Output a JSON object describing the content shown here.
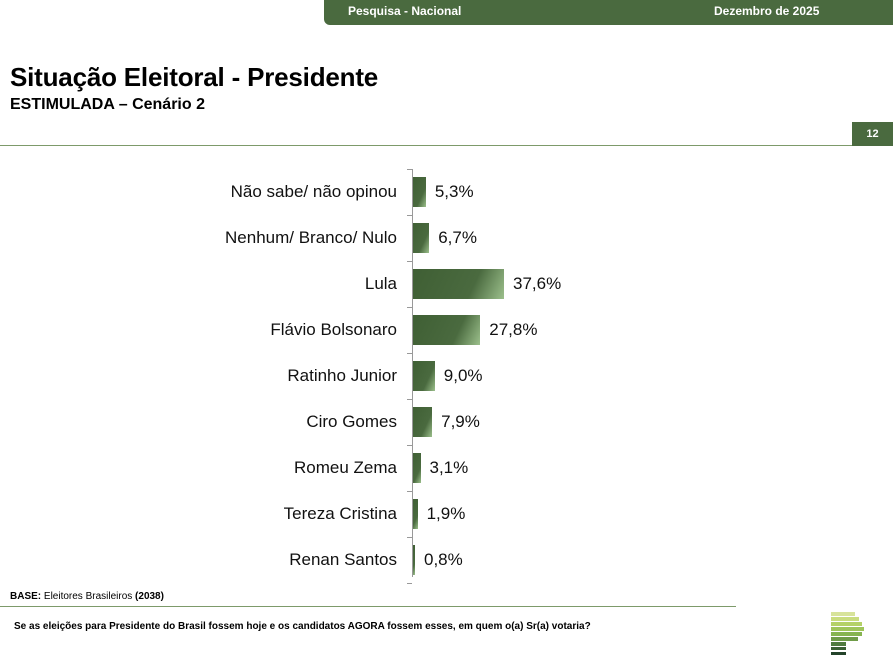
{
  "header": {
    "survey_label": "Pesquisa - Nacional",
    "date_label": "Dezembro de 2025",
    "brand_color": "#4a6a3f"
  },
  "page": {
    "title": "Situação Eleitoral - Presidente",
    "subtitle": "ESTIMULADA – Cenário 2",
    "page_number": "12"
  },
  "footer": {
    "base_label": "BASE:",
    "base_text": " Eleitores Brasileiros ",
    "base_count": "(2038)",
    "question": "Se as eleições para Presidente do Brasil fossem hoje e os candidatos AGORA fossem esses, em quem o(a) Sr(a) votaria?"
  },
  "chart_data": {
    "type": "bar",
    "orientation": "horizontal",
    "title": "Situação Eleitoral - Presidente",
    "subtitle": "ESTIMULADA – Cenário 2",
    "xlabel": "",
    "ylabel": "",
    "unit": "%",
    "grid": false,
    "legend": null,
    "categories": [
      "Não sabe/ não opinou",
      "Nenhum/ Branco/ Nulo",
      "Lula",
      "Flávio Bolsonaro",
      "Ratinho Junior",
      "Ciro Gomes",
      "Romeu Zema",
      "Tereza Cristina",
      "Renan Santos"
    ],
    "values": [
      5.3,
      6.7,
      37.6,
      27.8,
      9.0,
      7.9,
      3.1,
      1.9,
      0.8
    ],
    "value_labels": [
      "5,3%",
      "6,7%",
      "37,6%",
      "27,8%",
      "9,0%",
      "7,9%",
      "3,1%",
      "1,9%",
      "0,8%"
    ],
    "bar_color": "#4a6a3f"
  }
}
